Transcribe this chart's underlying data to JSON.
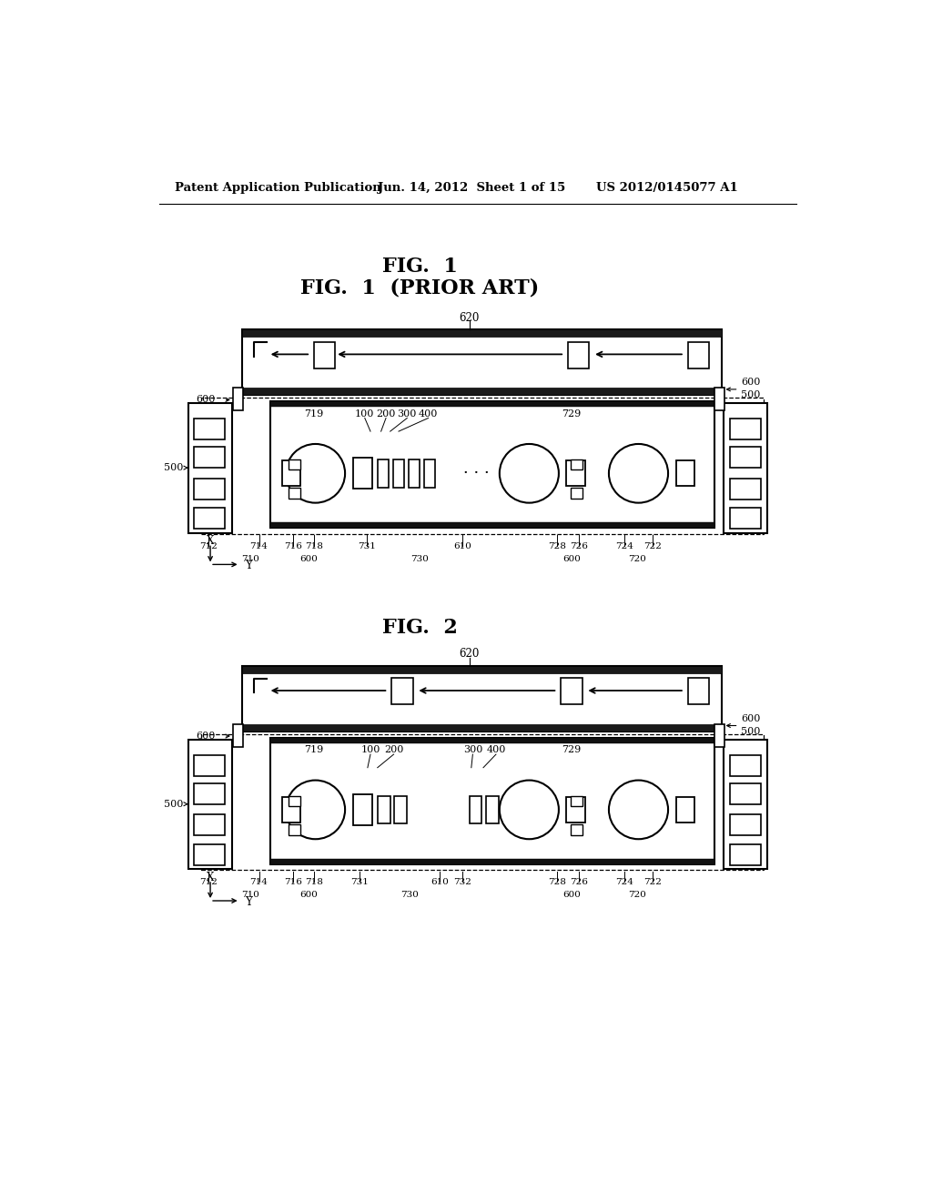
{
  "bg_color": "#ffffff",
  "header_left": "Patent Application Publication",
  "header_mid": "Jun. 14, 2012  Sheet 1 of 15",
  "header_right": "US 2012/0145077 A1",
  "fig1_title": "FIG.  1",
  "fig1_subtitle": "FIG.  1  (PRIOR ART)",
  "fig2_title": "FIG.  2"
}
